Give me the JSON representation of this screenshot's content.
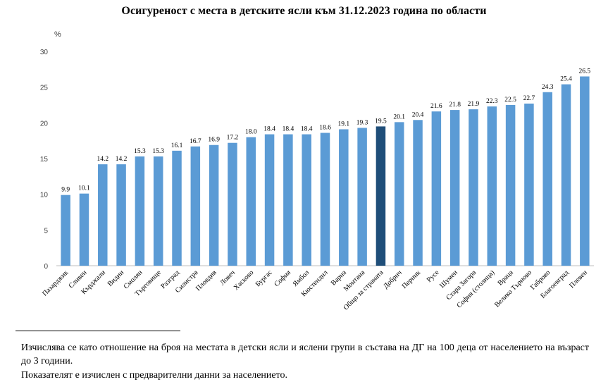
{
  "title": "Осигуреност с места в детските ясли към 31.12.2023 година по области",
  "footnote": {
    "line1": "Изчислява се като отношение на броя на местата в детски ясли и яслени групи в състава на ДГ на 100 деца от населението на възраст до 3 години.",
    "line2": "Показателят е изчислен с предварителни данни за населението."
  },
  "chart_data": {
    "type": "bar",
    "title": "Осигуреност с места в детските ясли към 31.12.2023 година по области",
    "ylabel": "%",
    "xlabel": "",
    "ylim": [
      0,
      30
    ],
    "yticks": [
      0,
      5,
      10,
      15,
      20,
      25,
      30
    ],
    "grid": false,
    "legend": "none",
    "colors": {
      "bar": "#5b9bd5",
      "highlight": "#1f4e79",
      "axis": "#bfbfbf"
    },
    "highlight_category": "Общо за страната",
    "categories": [
      "Пазарджик",
      "Сливен",
      "Кърджали",
      "Видин",
      "Смолян",
      "Търговище",
      "Разград",
      "Силистра",
      "Пловдив",
      "Ловеч",
      "Хасково",
      "Бургас",
      "София",
      "Ямбол",
      "Кюстендил",
      "Варна",
      "Монтана",
      "Общо за страната",
      "Добрич",
      "Перник",
      "Русе",
      "Шумен",
      "Стара Загора",
      "София (столица)",
      "Враца",
      "Велико Търново",
      "Габрово",
      "Благоевград",
      "Плевен"
    ],
    "values": [
      9.9,
      10.1,
      14.2,
      14.2,
      15.3,
      15.3,
      16.1,
      16.7,
      16.9,
      17.2,
      18.0,
      18.4,
      18.4,
      18.4,
      18.6,
      19.1,
      19.3,
      19.5,
      20.1,
      20.4,
      21.6,
      21.8,
      21.9,
      22.3,
      22.5,
      22.7,
      24.3,
      25.4,
      26.5
    ]
  }
}
